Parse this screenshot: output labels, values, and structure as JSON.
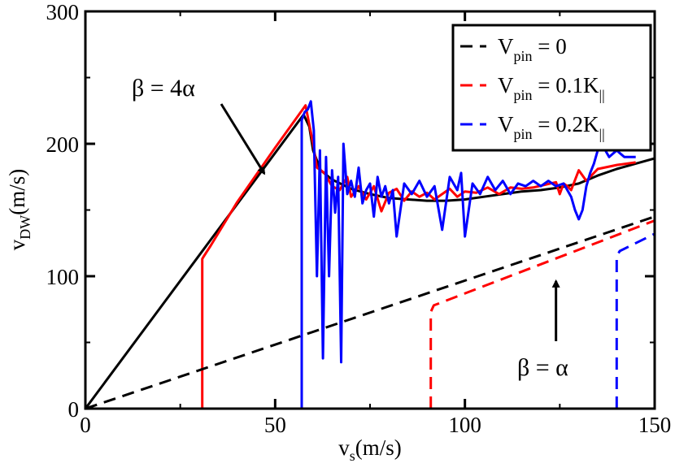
{
  "chart_data": {
    "type": "line",
    "xlabel": {
      "main": "v",
      "sub": "s",
      "unit": "(m/s)"
    },
    "ylabel": {
      "main": "v",
      "sub": "DW",
      "unit": "(m/s)"
    },
    "xlim": [
      0,
      150
    ],
    "ylim": [
      0,
      300
    ],
    "xticks": [
      0,
      50,
      100,
      150
    ],
    "yticks": [
      0,
      100,
      200,
      300
    ],
    "grid": false,
    "legend_position": "top-right",
    "legend": [
      {
        "main": "V",
        "sub": "pin",
        "rest": "= 0"
      },
      {
        "main": "V",
        "sub": "pin",
        "rest": "= 0.1K",
        "rest_sub": "||"
      },
      {
        "main": "V",
        "sub": "pin",
        "rest": "= 0.2K",
        "rest_sub": "||"
      }
    ],
    "annotations": [
      {
        "text": "β = 4α",
        "arrow_to": [
          48,
          183
        ]
      },
      {
        "text": "β = α",
        "arrow_to": [
          124,
          105
        ]
      }
    ],
    "series": [
      {
        "name": "Vpin = 0 (β = 4α)",
        "color": "#000000",
        "style": "solid",
        "x": [
          0,
          57.5,
          59,
          60,
          62,
          65,
          70,
          75,
          80,
          85,
          90,
          95,
          100,
          105,
          110,
          115,
          120,
          125,
          130,
          135,
          140,
          145,
          150
        ],
        "y": [
          0,
          222,
          213,
          195,
          180,
          173,
          166,
          162,
          159,
          158,
          157,
          157,
          158,
          160,
          162,
          164,
          165,
          167,
          170,
          176,
          181,
          185,
          189
        ]
      },
      {
        "name": "Vpin = 0.1K (β = 4α)",
        "color": "#ff0000",
        "style": "solid",
        "x": [
          0,
          30.8,
          30.8,
          31.2,
          33,
          40,
          50,
          58,
          60,
          61,
          63,
          65,
          67,
          69,
          70,
          72,
          74,
          76,
          78,
          80,
          82,
          84,
          86,
          88,
          90,
          92,
          94,
          96,
          98,
          100,
          103,
          106,
          109,
          112,
          115,
          118,
          121,
          124,
          125,
          126,
          127,
          128,
          130,
          132,
          135,
          140,
          145
        ],
        "y": [
          0,
          0,
          113,
          115,
          123,
          156,
          197,
          229,
          200,
          182,
          178,
          168,
          165,
          175,
          160,
          168,
          158,
          168,
          149,
          163,
          166,
          157,
          164,
          160,
          163,
          158,
          162,
          166,
          160,
          164,
          163,
          167,
          162,
          167,
          166,
          167,
          169,
          171,
          162,
          170,
          168,
          165,
          180,
          172,
          181,
          184,
          186
        ]
      },
      {
        "name": "Vpin = 0.2K (β = 4α)",
        "color": "#0000ff",
        "style": "solid",
        "x": [
          57,
          57,
          57.8,
          58.6,
          59.4,
          60.2,
          61,
          61.8,
          62.6,
          63.4,
          64.2,
          65,
          65.8,
          66.6,
          67.4,
          68,
          69,
          70,
          71,
          72,
          73,
          74,
          75,
          76,
          77,
          78,
          79,
          80,
          81,
          82,
          84,
          86,
          88,
          90,
          92,
          94,
          96,
          98,
          99,
          100,
          102,
          104,
          106,
          108,
          110,
          112,
          114,
          116,
          118,
          120,
          122,
          124,
          126,
          128,
          129,
          130,
          131,
          132,
          133,
          134,
          135,
          136,
          138,
          140,
          142,
          145
        ],
        "y": [
          0,
          218,
          224,
          226,
          232,
          210,
          100,
          195,
          38,
          190,
          100,
          180,
          148,
          175,
          35,
          200,
          162,
          172,
          160,
          182,
          155,
          165,
          170,
          145,
          175,
          160,
          168,
          155,
          165,
          130,
          170,
          162,
          172,
          160,
          168,
          135,
          175,
          165,
          178,
          130,
          170,
          162,
          175,
          165,
          172,
          162,
          170,
          168,
          172,
          168,
          172,
          168,
          170,
          160,
          150,
          143,
          150,
          168,
          178,
          185,
          195,
          200,
          190,
          195,
          190,
          190
        ]
      },
      {
        "name": "Vpin = 0 (β = α)",
        "color": "#000000",
        "style": "dashed",
        "x": [
          0,
          150
        ],
        "y": [
          0,
          145
        ]
      },
      {
        "name": "Vpin = 0.1K (β = α)",
        "color": "#ff0000",
        "style": "dashed",
        "x": [
          91,
          91,
          91.8,
          150
        ],
        "y": [
          0,
          73,
          78,
          142
        ]
      },
      {
        "name": "Vpin = 0.2K (β = α)",
        "color": "#0000ff",
        "style": "dashed",
        "x": [
          140,
          140,
          140.8,
          150
        ],
        "y": [
          0,
          115,
          119,
          132
        ]
      }
    ]
  }
}
